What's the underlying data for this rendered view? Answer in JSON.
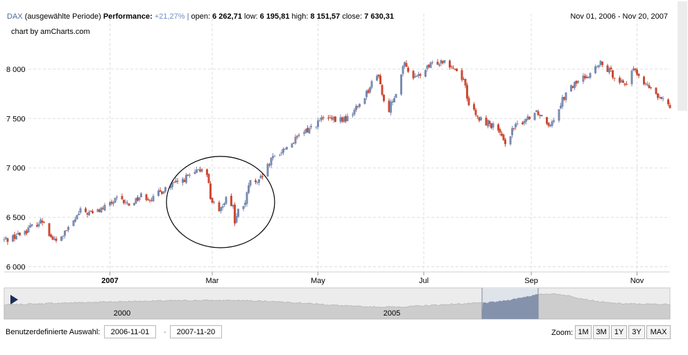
{
  "header": {
    "symbol": "DAX",
    "period_label": "(ausgewählte Periode)",
    "performance_label": "Performance:",
    "performance_value": "+21,27%",
    "separator": "|",
    "open_label": "open:",
    "open_value": "6 262,71",
    "low_label": "low:",
    "low_value": "6 195,81",
    "high_label": "high:",
    "high_value": "8 151,57",
    "close_label": "close:",
    "close_value": "7 630,31",
    "date_range": "Nov 01, 2006 - Nov 20, 2007",
    "credit": "chart by amCharts.com"
  },
  "chart_data": {
    "type": "candlestick",
    "x_tick_labels": [
      "2007",
      "Mar",
      "May",
      "Jul",
      "Sep",
      "Nov"
    ],
    "y_tick_labels": [
      "8 000",
      "7 500",
      "7 000",
      "6 500",
      "6 000"
    ],
    "y_ticks": [
      8000,
      7500,
      7000,
      6500,
      6000
    ],
    "ylim": [
      6000,
      8300
    ],
    "x_range": [
      "2006-11-01",
      "2007-11-20"
    ],
    "grid": true,
    "up_color": "#7b8bb0",
    "down_color": "#cc4a33",
    "close_path": [
      [
        "2006-11-01",
        6270
      ],
      [
        "2006-11-10",
        6330
      ],
      [
        "2006-11-20",
        6440
      ],
      [
        "2006-11-24",
        6470
      ],
      [
        "2006-11-28",
        6300
      ],
      [
        "2006-12-01",
        6250
      ],
      [
        "2006-12-08",
        6380
      ],
      [
        "2006-12-15",
        6560
      ],
      [
        "2006-12-22",
        6540
      ],
      [
        "2006-12-29",
        6600
      ],
      [
        "2007-01-05",
        6680
      ],
      [
        "2007-01-12",
        6630
      ],
      [
        "2007-01-19",
        6720
      ],
      [
        "2007-01-26",
        6690
      ],
      [
        "2007-02-02",
        6800
      ],
      [
        "2007-02-09",
        6850
      ],
      [
        "2007-02-16",
        6920
      ],
      [
        "2007-02-21",
        6960
      ],
      [
        "2007-02-23",
        7000
      ],
      [
        "2007-02-26",
        6960
      ],
      [
        "2007-02-28",
        6700
      ],
      [
        "2007-03-05",
        6530
      ],
      [
        "2007-03-07",
        6640
      ],
      [
        "2007-03-09",
        6700
      ],
      [
        "2007-03-13",
        6620
      ],
      [
        "2007-03-14",
        6450
      ],
      [
        "2007-03-16",
        6560
      ],
      [
        "2007-03-20",
        6650
      ],
      [
        "2007-03-23",
        6880
      ],
      [
        "2007-03-27",
        6830
      ],
      [
        "2007-03-30",
        6920
      ],
      [
        "2007-04-05",
        7100
      ],
      [
        "2007-04-12",
        7200
      ],
      [
        "2007-04-19",
        7300
      ],
      [
        "2007-04-26",
        7400
      ],
      [
        "2007-05-04",
        7500
      ],
      [
        "2007-05-11",
        7480
      ],
      [
        "2007-05-18",
        7500
      ],
      [
        "2007-05-25",
        7650
      ],
      [
        "2007-06-01",
        7850
      ],
      [
        "2007-06-05",
        7950
      ],
      [
        "2007-06-08",
        7650
      ],
      [
        "2007-06-11",
        7600
      ],
      [
        "2007-06-15",
        7780
      ],
      [
        "2007-06-20",
        8050
      ],
      [
        "2007-06-26",
        7900
      ],
      [
        "2007-06-29",
        7950
      ],
      [
        "2007-07-06",
        8050
      ],
      [
        "2007-07-13",
        8100
      ],
      [
        "2007-07-18",
        8020
      ],
      [
        "2007-07-24",
        7900
      ],
      [
        "2007-07-27",
        7650
      ],
      [
        "2007-08-01",
        7500
      ],
      [
        "2007-08-08",
        7450
      ],
      [
        "2007-08-13",
        7380
      ],
      [
        "2007-08-16",
        7250
      ],
      [
        "2007-08-22",
        7400
      ],
      [
        "2007-08-29",
        7500
      ],
      [
        "2007-09-04",
        7580
      ],
      [
        "2007-09-11",
        7450
      ],
      [
        "2007-09-14",
        7500
      ],
      [
        "2007-09-19",
        7700
      ],
      [
        "2007-09-26",
        7850
      ],
      [
        "2007-10-04",
        7950
      ],
      [
        "2007-10-11",
        8050
      ],
      [
        "2007-10-18",
        7950
      ],
      [
        "2007-10-25",
        7850
      ],
      [
        "2007-10-31",
        8000
      ],
      [
        "2007-11-05",
        7850
      ],
      [
        "2007-11-09",
        7800
      ],
      [
        "2007-11-14",
        7700
      ],
      [
        "2007-11-20",
        7630
      ]
    ],
    "annotation": "circle around the late-February / March 2007 drop"
  },
  "navigator": {
    "labels": [
      "2000",
      "2005"
    ],
    "selection_color": "#8592ac",
    "background_color": "#ececec",
    "play_icon": "play-triangle-icon"
  },
  "footer": {
    "range_label": "Benutzerdefinierte Auswahl:",
    "start_date": "2006-11-01",
    "separator": "-",
    "end_date": "2007-11-20",
    "zoom_label": "Zoom:",
    "zoom_buttons": [
      "1M",
      "3M",
      "1Y",
      "3Y",
      "MAX"
    ]
  }
}
